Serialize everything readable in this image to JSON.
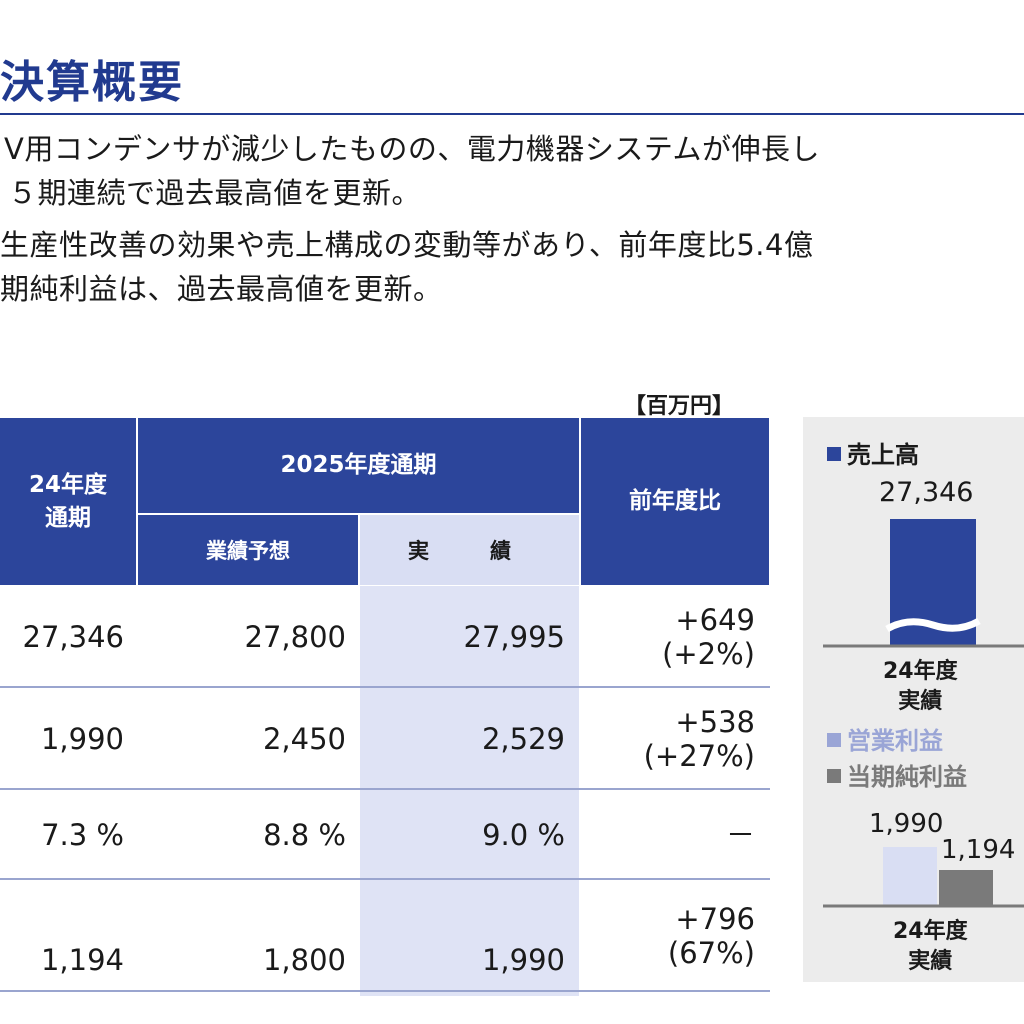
{
  "header": {
    "title": "決算概要",
    "bullets": [
      "V用コンデンサが減少したものの、電力機器システムが伸長し",
      "５期連続で過去最高値を更新。",
      "生産性改善の効果や売上構成の変動等があり、前年度比5.4億",
      "期純利益は、過去最高値を更新。"
    ]
  },
  "table": {
    "unit": "【百万円】",
    "col_prev": "24年度\n通期",
    "col_group": "2025年度通期",
    "col_forecast": "業績予想",
    "col_actual": "実　績",
    "col_diff": "前年度比",
    "rows": [
      {
        "prev": "27,346",
        "forecast": "27,800",
        "actual": "27,995",
        "diff1": "+649",
        "diff2": "(+2%)"
      },
      {
        "prev": "1,990",
        "forecast": "2,450",
        "actual": "2,529",
        "diff1": "+538",
        "diff2": "(+27%)"
      },
      {
        "prev": "7.3 %",
        "forecast": "8.8 %",
        "actual": "9.0 %",
        "diff1": "－",
        "diff2": ""
      },
      {
        "prev": "1,194",
        "forecast": "1,800",
        "actual": "1,990",
        "diff1": "+796",
        "diff2": "(67%)"
      }
    ]
  },
  "side": {
    "sales_legend": "売上高",
    "sales_value": "27,346",
    "sales_label": "24年度\n実績",
    "op_legend": "営業利益",
    "net_legend": "当期純利益",
    "op_value": "1,990",
    "net_value": "1,194",
    "profit_label": "24年度\n実績",
    "colors": {
      "sales": "#2c459b",
      "op": "#d9def3",
      "net": "#7a7a7a"
    }
  }
}
